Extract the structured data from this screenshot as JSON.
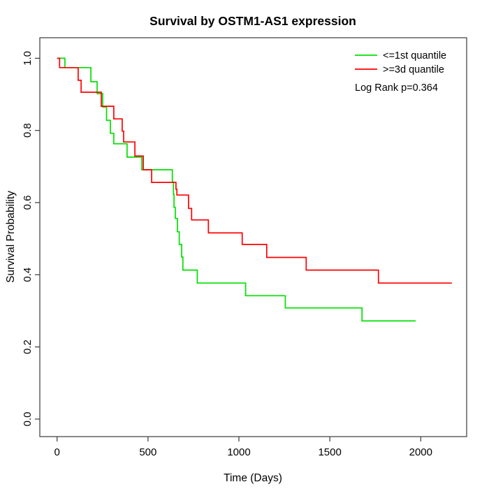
{
  "title": "Survival by OSTM1-AS1 expression",
  "annotation": "Log Rank p=0.364",
  "chart_data": {
    "type": "line",
    "subtype": "kaplan-meier-step",
    "title": "Survival by OSTM1-AS1 expression",
    "xlabel": "Time (Days)",
    "ylabel": "Survival Probability",
    "xlim": [
      0,
      2250
    ],
    "ylim": [
      0.0,
      1.0
    ],
    "x_ticks": [
      0,
      500,
      1000,
      1500,
      2000
    ],
    "y_ticks": [
      "0.0",
      "0.2",
      "0.4",
      "0.6",
      "0.8",
      "1.0"
    ],
    "grid": false,
    "legend_position": "top-right",
    "annotation": "Log Rank p=0.364",
    "axis_color": "#3a3a3a",
    "text_color": "#000000",
    "series": [
      {
        "name": "<=1st quantile",
        "color": "#00e000",
        "end_day": 1972,
        "points": [
          [
            0,
            1.0
          ],
          [
            43,
            0.974
          ],
          [
            186,
            0.935
          ],
          [
            220,
            0.902
          ],
          [
            251,
            0.865
          ],
          [
            272,
            0.828
          ],
          [
            293,
            0.792
          ],
          [
            312,
            0.763
          ],
          [
            385,
            0.726
          ],
          [
            466,
            0.691
          ],
          [
            634,
            0.657
          ],
          [
            640,
            0.623
          ],
          [
            643,
            0.587
          ],
          [
            650,
            0.556
          ],
          [
            662,
            0.519
          ],
          [
            672,
            0.484
          ],
          [
            685,
            0.449
          ],
          [
            692,
            0.413
          ],
          [
            771,
            0.377
          ],
          [
            1037,
            0.342
          ],
          [
            1255,
            0.308
          ],
          [
            1677,
            0.272
          ]
        ]
      },
      {
        "name": ">=3d quantile",
        "color": "#ff0000",
        "end_day": 2171,
        "points": [
          [
            0,
            1.0
          ],
          [
            14,
            0.974
          ],
          [
            116,
            0.939
          ],
          [
            132,
            0.906
          ],
          [
            243,
            0.867
          ],
          [
            312,
            0.832
          ],
          [
            358,
            0.798
          ],
          [
            366,
            0.768
          ],
          [
            428,
            0.729
          ],
          [
            474,
            0.691
          ],
          [
            520,
            0.656
          ],
          [
            654,
            0.637
          ],
          [
            659,
            0.621
          ],
          [
            723,
            0.584
          ],
          [
            740,
            0.552
          ],
          [
            832,
            0.516
          ],
          [
            1018,
            0.484
          ],
          [
            1153,
            0.448
          ],
          [
            1370,
            0.413
          ],
          [
            1767,
            0.377
          ]
        ]
      }
    ]
  }
}
